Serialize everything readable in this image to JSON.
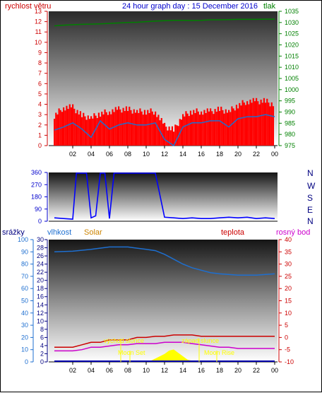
{
  "header": {
    "left_label": "rychlost větru",
    "title": "24 hour graph day : 15 December 2016",
    "right_label": "tlak"
  },
  "colors": {
    "wind_speed": "#ff0000",
    "wind_avg": "#1e6fd0",
    "pressure": "#008000",
    "direction": "#0000ff",
    "humidity": "#1e6fd0",
    "temperature": "#cc0000",
    "dew_point": "#cc00cc",
    "solar": "#ffff00",
    "rain": "#0000aa",
    "annotation": "#ffff00"
  },
  "panels": {
    "direction_labels": [
      "N",
      "W",
      "S",
      "E",
      "N"
    ],
    "bottom": {
      "left1_label": "srážky",
      "left2_label": "vlhkost",
      "solar_label": "Solar",
      "temp_label": "teplota",
      "dew_label": "rosný bod",
      "annotations": [
        "východ slunce",
        "západ slunce",
        "Moon Set",
        "Moon Rise"
      ]
    }
  },
  "chart_data": [
    {
      "type": "line",
      "x_ticks": [
        "02",
        "04",
        "06",
        "08",
        "10",
        "12",
        "14",
        "16",
        "18",
        "20",
        "22",
        "00"
      ],
      "ylabel": "rychlost větru",
      "ylim": [
        0,
        13
      ],
      "y_ticks": [
        0,
        1,
        2,
        3,
        4,
        5,
        6,
        7,
        8,
        9,
        10,
        11,
        12,
        13
      ],
      "y2label": "tlak",
      "y2lim": [
        975,
        1035
      ],
      "y2_ticks": [
        975,
        980,
        985,
        990,
        995,
        1000,
        1005,
        1010,
        1015,
        1020,
        1025,
        1030,
        1035
      ],
      "series": [
        {
          "axis": "y",
          "x": [
            0,
            1,
            2,
            3,
            4,
            5,
            6,
            7,
            8,
            9,
            10,
            11,
            12,
            13,
            14,
            15,
            16,
            17,
            18,
            19,
            20,
            21,
            22,
            23,
            24
          ],
          "values": [
            1.5,
            1.8,
            2.2,
            1.6,
            0.8,
            2.4,
            1.6,
            2.0,
            2.2,
            2.0,
            2.0,
            2.2,
            0.6,
            0.0,
            1.8,
            2.2,
            2.2,
            2.4,
            2.4,
            1.8,
            2.6,
            2.8,
            2.8,
            3.0,
            2.8
          ]
        },
        {
          "axis": "y",
          "x": [
            0,
            1,
            2,
            3,
            4,
            5,
            6,
            7,
            8,
            9,
            10,
            11,
            12,
            13,
            14,
            15,
            16,
            17,
            18,
            19,
            20,
            21,
            22,
            23,
            24
          ],
          "values": [
            2.6,
            3.4,
            3.4,
            2.6,
            2.4,
            2.8,
            3.0,
            3.2,
            3.2,
            3.0,
            3.0,
            3.0,
            1.6,
            1.2,
            2.6,
            3.0,
            3.0,
            3.0,
            3.2,
            3.0,
            3.6,
            4.0,
            4.0,
            4.0,
            3.6
          ]
        },
        {
          "axis": "y2",
          "x": [
            0,
            1,
            2,
            3,
            4,
            5,
            6,
            7,
            8,
            9,
            10,
            11,
            12,
            13,
            14,
            15,
            16,
            17,
            18,
            19,
            20,
            21,
            22,
            23,
            24
          ],
          "values": [
            1028.5,
            1028.8,
            1029.0,
            1029.2,
            1029.3,
            1029.4,
            1029.6,
            1029.8,
            1030.0,
            1030.1,
            1030.4,
            1030.6,
            1030.8,
            1031.0,
            1031.0,
            1030.9,
            1031.0,
            1031.2,
            1031.2,
            1031.3,
            1031.4,
            1031.4,
            1031.4,
            1031.5,
            1031.5
          ]
        }
      ]
    },
    {
      "type": "line",
      "x_ticks": [
        "02",
        "04",
        "06",
        "08",
        "10",
        "12",
        "14",
        "16",
        "18",
        "20",
        "22",
        "00"
      ],
      "ylim": [
        0,
        360
      ],
      "y_ticks": [
        0,
        90,
        180,
        270,
        360
      ],
      "series": [
        {
          "x": [
            0,
            1,
            2,
            2.4,
            3.5,
            4,
            4.5,
            5,
            5.5,
            6,
            6.5,
            7,
            8,
            9,
            10,
            11,
            12,
            13,
            14,
            15,
            16,
            17,
            18,
            19,
            20,
            21,
            22,
            23,
            24
          ],
          "values": [
            25,
            20,
            15,
            355,
            355,
            25,
            40,
            355,
            355,
            20,
            355,
            355,
            355,
            355,
            355,
            355,
            30,
            25,
            20,
            25,
            20,
            20,
            25,
            30,
            25,
            30,
            20,
            25,
            20
          ]
        }
      ]
    },
    {
      "type": "line",
      "x_ticks": [
        "02",
        "04",
        "06",
        "08",
        "10",
        "12",
        "14",
        "16",
        "18",
        "20",
        "22",
        "00"
      ],
      "y_ticks_left1": [
        0,
        2,
        4,
        6,
        8,
        10,
        12,
        14,
        16,
        18,
        20,
        22,
        24,
        26,
        28,
        30
      ],
      "y_ticks_left2": [
        0,
        10,
        20,
        30,
        40,
        50,
        60,
        70,
        80,
        90,
        100
      ],
      "y_ticks_right": [
        -10,
        -5,
        0,
        5,
        10,
        15,
        20,
        25,
        30,
        35,
        40
      ],
      "ylim": [
        -10,
        40
      ],
      "series": [
        {
          "x": [
            0,
            2,
            4,
            6,
            8,
            9,
            10,
            11,
            12,
            13,
            14,
            15,
            16,
            17,
            18,
            20,
            22,
            24
          ],
          "values": [
            90,
            90.5,
            92,
            94,
            94,
            93,
            92,
            91,
            88,
            84,
            80,
            77,
            75,
            73,
            72,
            71,
            71,
            72
          ]
        },
        {
          "x": [
            0,
            1,
            2,
            3,
            4,
            5,
            6,
            7,
            8,
            9,
            10,
            11,
            12,
            13,
            14,
            15,
            16,
            17,
            18,
            19,
            20,
            21,
            22,
            23,
            24
          ],
          "values": [
            -4,
            -4,
            -4,
            -3,
            -2,
            -2,
            -1,
            -1,
            -1,
            0,
            0,
            0.5,
            0.5,
            1,
            1,
            1,
            0.5,
            0.5,
            0.5,
            0.5,
            0.5,
            0.5,
            0.5,
            0.5,
            0.5
          ]
        },
        {
          "x": [
            0,
            1,
            2,
            3,
            4,
            5,
            6,
            7,
            8,
            9,
            10,
            11,
            12,
            13,
            14,
            15,
            16,
            17,
            18,
            19,
            20,
            21,
            22,
            23,
            24
          ],
          "values": [
            -5.5,
            -5.5,
            -5.5,
            -5,
            -4,
            -4,
            -3.5,
            -3,
            -3,
            -2.5,
            -2.5,
            -2.5,
            -2,
            -2,
            -2,
            -2.5,
            -3,
            -3.5,
            -4,
            -4,
            -4.5,
            -4.5,
            -4.5,
            -4.5,
            -4.5
          ]
        },
        {
          "x": [
            10,
            10.5,
            11,
            11.5,
            12,
            12.5,
            13,
            13.5,
            14,
            14.5,
            15,
            16
          ],
          "values": [
            0,
            0.5,
            1.5,
            2.5,
            3.5,
            5,
            5.5,
            4,
            2.5,
            1,
            0.5,
            0
          ]
        },
        {
          "x": [
            0,
            12,
            24
          ],
          "values": [
            0,
            0,
            0
          ]
        }
      ]
    }
  ]
}
